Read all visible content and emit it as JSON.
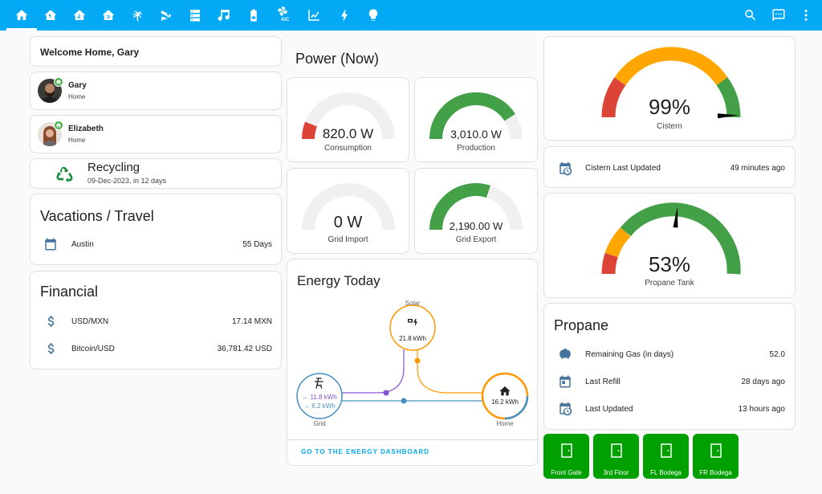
{
  "topbar": {
    "tabs": [
      {
        "icon": "home-icon"
      },
      {
        "icon": "home-floor-1-icon"
      },
      {
        "icon": "home-floor-2-icon"
      },
      {
        "icon": "home-floor-3-icon"
      },
      {
        "icon": "palm-tree-icon"
      },
      {
        "icon": "cctv-icon"
      },
      {
        "icon": "server-icon"
      },
      {
        "icon": "music-icon"
      },
      {
        "icon": "battery-icon"
      },
      {
        "icon": "fan-ac-icon",
        "label": "A/C"
      },
      {
        "icon": "chart-line-icon"
      },
      {
        "icon": "lightning-bolt-icon"
      },
      {
        "icon": "lightbulb-icon"
      }
    ],
    "actions": [
      {
        "icon": "search-icon"
      },
      {
        "icon": "assist-icon"
      },
      {
        "icon": "more-vertical-icon"
      }
    ]
  },
  "welcome": {
    "text": "Welcome Home, Gary"
  },
  "people": [
    {
      "name": "Gary",
      "state": "Home"
    },
    {
      "name": "Elizabeth",
      "state": "Home"
    }
  ],
  "recycling": {
    "title": "Recycling",
    "subtitle": "09-Dec-2023, in 12 days"
  },
  "vacations": {
    "title": "Vacations / Travel",
    "rows": [
      {
        "label": "Austin",
        "value": "55 Days"
      }
    ]
  },
  "financial": {
    "title": "Financial",
    "rows": [
      {
        "label": "USD/MXN",
        "value": "17.14 MXN"
      },
      {
        "label": "Bitcoin/USD",
        "value": "36,781.42 USD"
      }
    ]
  },
  "power": {
    "title": "Power (Now)",
    "gauges": [
      {
        "value": "820.0 W",
        "label": "Consumption",
        "fraction": 0.12,
        "color": "#db4437"
      },
      {
        "value": "3,010.0 W",
        "label": "Production",
        "fraction": 0.82,
        "color": "#43a047"
      },
      {
        "value": "0 W",
        "label": "Grid Import",
        "fraction": 0,
        "color": "#43a047"
      },
      {
        "value": "2,190.00 W",
        "label": "Grid Export",
        "fraction": 0.6,
        "color": "#43a047"
      }
    ]
  },
  "energy": {
    "title": "Energy Today",
    "solar": {
      "label": "Solar",
      "value": "21.8 kWh"
    },
    "grid": {
      "label": "Grid",
      "import": "← 11.8 kWh",
      "export": "→ 6.2 kWh"
    },
    "home": {
      "label": "Home",
      "value": "16.2 kWh"
    },
    "link": "GO TO THE ENERGY DASHBOARD",
    "colors": {
      "solar": "#ff9800",
      "grid_import": "#488fc2",
      "grid_export": "#8353d1"
    }
  },
  "cistern": {
    "value": "99%",
    "label": "Cistern",
    "fraction": 0.99
  },
  "cistern_updated": {
    "label": "Cistern Last Updated",
    "value": "49 minutes ago"
  },
  "propane_gauge": {
    "value": "53%",
    "label": "Propane Tank",
    "fraction": 0.53
  },
  "propane": {
    "title": "Propane",
    "rows": [
      {
        "label": "Remaining Gas (in days)",
        "value": "52.0",
        "icon": "propane-tank-icon"
      },
      {
        "label": "Last Refill",
        "value": "28 days ago",
        "icon": "calendar-icon"
      },
      {
        "label": "Last Updated",
        "value": "13 hours ago",
        "icon": "calendar-clock-icon"
      }
    ]
  },
  "doors": [
    {
      "label": "Front Gate"
    },
    {
      "label": "3rd Floor"
    },
    {
      "label": "FL Bodega"
    },
    {
      "label": "FR Bodega"
    }
  ],
  "colors": {
    "accent": "#03a9f4",
    "icon": "#44739e",
    "door": "#00a000",
    "red": "#db4437",
    "amber": "#ffa600",
    "green": "#43a047"
  }
}
